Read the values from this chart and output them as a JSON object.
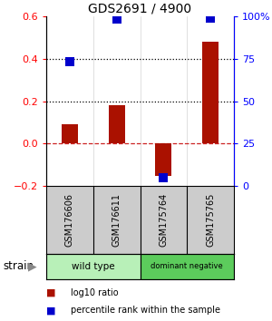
{
  "title": "GDS2691 / 4900",
  "samples": [
    "GSM176606",
    "GSM176611",
    "GSM175764",
    "GSM175765"
  ],
  "log10_ratio": [
    0.09,
    0.18,
    -0.15,
    0.48
  ],
  "percentile_rank": [
    73,
    98,
    5,
    99
  ],
  "groups": [
    {
      "label": "wild type",
      "color": "#b8f0b8",
      "samples": [
        0,
        1
      ]
    },
    {
      "label": "dominant negative",
      "color": "#60cc60",
      "samples": [
        2,
        3
      ]
    }
  ],
  "ylim_left": [
    -0.2,
    0.6
  ],
  "ylim_right": [
    0,
    100
  ],
  "yticks_left": [
    -0.2,
    0.0,
    0.2,
    0.4,
    0.6
  ],
  "yticks_right": [
    0,
    25,
    50,
    75,
    100
  ],
  "ytick_labels_right": [
    "0",
    "25",
    "50",
    "75",
    "100%"
  ],
  "hlines": [
    0.2,
    0.4
  ],
  "bar_color": "#aa1100",
  "dot_color": "#0000cc",
  "bar_width": 0.35,
  "dot_size": 45,
  "legend_red_label": "log10 ratio",
  "legend_blue_label": "percentile rank within the sample",
  "strain_label": "strain",
  "background_color": "#ffffff",
  "label_area_color": "#cccccc",
  "zero_line_color": "#cc2222",
  "grid_line_color": "#000000"
}
